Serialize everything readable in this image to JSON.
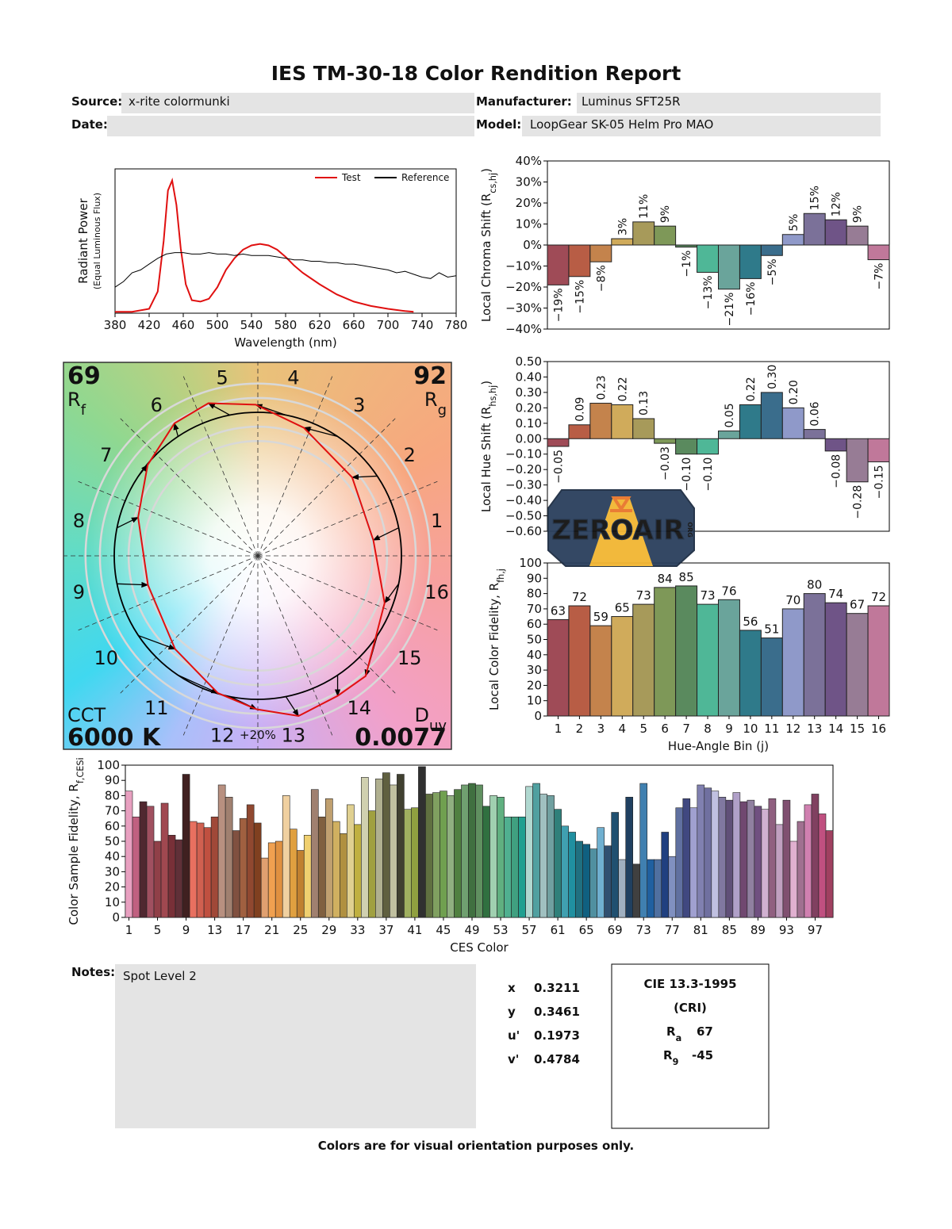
{
  "header": {
    "title": "IES TM-30-18 Color Rendition Report",
    "source_label": "Source:",
    "source": "x-rite colormunki",
    "manufacturer_label": "Manufacturer:",
    "manufacturer": "Luminus SFT25R",
    "date_label": "Date:",
    "model_label": "Model:",
    "model": "LoopGear SK-05 Helm Pro MAO"
  },
  "chart_data": [
    {
      "type": "line",
      "xlabel": "Wavelength (nm)",
      "ylabel": "Radiant Power",
      "ylabel_note": "(Equal Luminous Flux)",
      "xlim": [
        380,
        780
      ],
      "xticks": [
        380,
        420,
        460,
        500,
        540,
        580,
        620,
        660,
        700,
        740,
        780
      ],
      "ylim": [
        0,
        1
      ],
      "series": [
        {
          "name": "Test",
          "color": "#e01010",
          "x": [
            380,
            400,
            420,
            430,
            437,
            442,
            447,
            452,
            457,
            463,
            470,
            480,
            490,
            500,
            510,
            520,
            530,
            540,
            550,
            560,
            570,
            580,
            590,
            600,
            620,
            640,
            660,
            680,
            700,
            720,
            730
          ],
          "values": [
            0.01,
            0.01,
            0.03,
            0.15,
            0.5,
            0.85,
            0.92,
            0.75,
            0.45,
            0.2,
            0.09,
            0.08,
            0.1,
            0.18,
            0.3,
            0.38,
            0.44,
            0.47,
            0.48,
            0.47,
            0.44,
            0.39,
            0.33,
            0.28,
            0.2,
            0.13,
            0.08,
            0.05,
            0.03,
            0.015,
            0.01
          ]
        },
        {
          "name": "Reference",
          "color": "#000000",
          "x": [
            380,
            390,
            400,
            410,
            420,
            430,
            440,
            450,
            460,
            470,
            480,
            490,
            500,
            510,
            520,
            530,
            540,
            550,
            560,
            570,
            580,
            590,
            600,
            610,
            620,
            630,
            640,
            650,
            660,
            670,
            680,
            690,
            700,
            710,
            720,
            730,
            740,
            750,
            760,
            770,
            780
          ],
          "values": [
            0.18,
            0.22,
            0.28,
            0.3,
            0.34,
            0.38,
            0.41,
            0.42,
            0.42,
            0.41,
            0.41,
            0.42,
            0.41,
            0.41,
            0.4,
            0.41,
            0.4,
            0.4,
            0.4,
            0.39,
            0.38,
            0.37,
            0.37,
            0.36,
            0.36,
            0.35,
            0.35,
            0.34,
            0.34,
            0.33,
            0.32,
            0.31,
            0.3,
            0.28,
            0.29,
            0.27,
            0.25,
            0.24,
            0.28,
            0.25,
            0.26
          ]
        }
      ]
    },
    {
      "type": "bar",
      "ylabel": "Local Chroma Shift (R",
      "ylabel_sub": "cs,hj",
      "ylabel_end": ")",
      "ylim": [
        -40,
        40
      ],
      "yticks": [
        {
          "value": 40,
          "label": "40%"
        },
        {
          "value": 30,
          "label": "30%"
        },
        {
          "value": 20,
          "label": "20%"
        },
        {
          "value": 10,
          "label": "10%"
        },
        {
          "value": 0,
          "label": "0%"
        },
        {
          "value": -10,
          "label": "−10%"
        },
        {
          "value": -20,
          "label": "−20%"
        },
        {
          "value": -30,
          "label": "−30%"
        },
        {
          "value": -40,
          "label": "−40%"
        }
      ],
      "values": [
        -19,
        -15,
        -8,
        3,
        11,
        9,
        -1,
        -13,
        -21,
        -16,
        -5,
        5,
        15,
        12,
        9,
        -7
      ],
      "value_labels": [
        "−19%",
        "−15%",
        "−8%",
        "3%",
        "11%",
        "9%",
        "−1%",
        "−13%",
        "−21%",
        "−16%",
        "−5%",
        "5%",
        "15%",
        "12%",
        "9%",
        "−7%"
      ],
      "colors": [
        "#9f4b57",
        "#b85d45",
        "#c4834c",
        "#d0ab5b",
        "#a79a5a",
        "#7e9858",
        "#5a8a5e",
        "#4fb797",
        "#6aa49b",
        "#2f7a8a",
        "#3a6d8c",
        "#8f99c9",
        "#7b7199",
        "#6f5487",
        "#977c95",
        "#c0789a"
      ]
    },
    {
      "type": "bar",
      "ylabel": "Local Hue Shift (R",
      "ylabel_sub": "hs,hj",
      "ylabel_end": ")",
      "ylim": [
        -0.6,
        0.5
      ],
      "yticks": [
        {
          "value": 0.5,
          "label": "0.50"
        },
        {
          "value": 0.4,
          "label": "0.40"
        },
        {
          "value": 0.3,
          "label": "0.30"
        },
        {
          "value": 0.2,
          "label": "0.20"
        },
        {
          "value": 0.1,
          "label": "0.10"
        },
        {
          "value": 0,
          "label": "0.00"
        },
        {
          "value": -0.1,
          "label": "−0.10"
        },
        {
          "value": -0.2,
          "label": "−0.20"
        },
        {
          "value": -0.3,
          "label": "−0.30"
        },
        {
          "value": -0.4,
          "label": "−0.40"
        },
        {
          "value": -0.5,
          "label": "−0.50"
        },
        {
          "value": -0.6,
          "label": "−0.60"
        }
      ],
      "values": [
        -0.05,
        0.09,
        0.23,
        0.22,
        0.13,
        -0.03,
        -0.1,
        -0.1,
        0.05,
        0.22,
        0.3,
        0.2,
        0.06,
        -0.08,
        -0.28,
        -0.15
      ],
      "value_labels": [
        "−0.05",
        "0.09",
        "0.23",
        "0.22",
        "0.13",
        "−0.03",
        "−0.10",
        "−0.10",
        "0.05",
        "0.22",
        "0.30",
        "0.20",
        "0.06",
        "−0.08",
        "−0.28",
        "−0.15"
      ],
      "colors": [
        "#9f4b57",
        "#b85d45",
        "#c4834c",
        "#d0ab5b",
        "#a79a5a",
        "#7e9858",
        "#5a8a5e",
        "#4fb797",
        "#6aa49b",
        "#2f7a8a",
        "#3a6d8c",
        "#8f99c9",
        "#7b7199",
        "#6f5487",
        "#977c95",
        "#c0789a"
      ]
    },
    {
      "type": "bar",
      "ylabel": "Local Color Fidelity, R",
      "ylabel_sub": "fh,j",
      "xlabel": "Hue-Angle Bin (j)",
      "ylim": [
        0,
        100
      ],
      "yticks": [
        0,
        10,
        20,
        30,
        40,
        50,
        60,
        70,
        80,
        90,
        100
      ],
      "categories": [
        "1",
        "2",
        "3",
        "4",
        "5",
        "6",
        "7",
        "8",
        "9",
        "10",
        "11",
        "12",
        "13",
        "14",
        "15",
        "16"
      ],
      "values": [
        63,
        72,
        59,
        65,
        73,
        84,
        85,
        73,
        76,
        56,
        51,
        70,
        80,
        74,
        67,
        72
      ],
      "colors": [
        "#9f4b57",
        "#b85d45",
        "#c4834c",
        "#d0ab5b",
        "#a79a5a",
        "#7e9858",
        "#5a8a5e",
        "#4fb797",
        "#6aa49b",
        "#2f7a8a",
        "#3a6d8c",
        "#8f99c9",
        "#7b7199",
        "#6f5487",
        "#977c95",
        "#c0789a"
      ]
    },
    {
      "type": "bar",
      "ylabel": "Color Sample Fidelity, R",
      "ylabel_sub": "f,CESi",
      "xlabel": "CES Color",
      "ylim": [
        0,
        100
      ],
      "yticks": [
        0,
        10,
        20,
        30,
        40,
        50,
        60,
        70,
        80,
        90,
        100
      ],
      "categories": [
        "1",
        null,
        null,
        null,
        "5",
        null,
        null,
        null,
        "9",
        null,
        null,
        null,
        "13",
        null,
        null,
        null,
        "17",
        null,
        null,
        null,
        "21",
        null,
        null,
        null,
        "25",
        null,
        null,
        null,
        "29",
        null,
        null,
        null,
        "33",
        null,
        null,
        null,
        "37",
        null,
        null,
        null,
        "41",
        null,
        null,
        null,
        "45",
        null,
        null,
        null,
        "49",
        null,
        null,
        null,
        "53",
        null,
        null,
        null,
        "57",
        null,
        null,
        null,
        "61",
        null,
        null,
        null,
        "65",
        null,
        null,
        null,
        "69",
        null,
        null,
        null,
        "73",
        null,
        null,
        null,
        "77",
        null,
        null,
        null,
        "81",
        null,
        null,
        null,
        "85",
        null,
        null,
        null,
        "89",
        null,
        null,
        null,
        "93",
        null,
        null,
        null,
        "97",
        null,
        null
      ],
      "values": [
        83,
        66,
        76,
        73,
        50,
        75,
        54,
        51,
        94,
        63,
        62,
        59,
        66,
        87,
        79,
        57,
        65,
        74,
        62,
        39,
        49,
        50,
        80,
        58,
        44,
        54,
        84,
        66,
        78,
        63,
        55,
        74,
        61,
        92,
        70,
        91,
        95,
        87,
        94,
        71,
        72,
        99,
        81,
        82,
        83,
        80,
        84,
        87,
        88,
        87,
        73,
        80,
        79,
        66,
        66,
        66,
        86,
        88,
        81,
        80,
        71,
        60,
        56,
        50,
        48,
        45,
        59,
        47,
        69,
        38,
        79,
        35,
        88,
        38,
        38,
        56,
        40,
        72,
        78,
        72,
        87,
        85,
        83,
        79,
        77,
        82,
        76,
        77,
        73,
        71,
        78,
        61,
        77,
        50,
        63,
        74,
        81,
        68,
        57
      ],
      "colors": [
        "#e8a0c0",
        "#c06080",
        "#502830",
        "#a05060",
        "#904048",
        "#a04850",
        "#783038",
        "#603038",
        "#402020",
        "#e87060",
        "#d06050",
        "#c05040",
        "#a04838",
        "#b89080",
        "#a08070",
        "#805040",
        "#a06040",
        "#904830",
        "#804020",
        "#e0a070",
        "#f0a050",
        "#e09040",
        "#f0d0a0",
        "#e0a040",
        "#c08030",
        "#f0d070",
        "#a08070",
        "#806040",
        "#c0a070",
        "#d0b060",
        "#b09040",
        "#e0d090",
        "#c0b040",
        "#d0d0b0",
        "#a0a040",
        "#b0b090",
        "#606040",
        "#c0c0a0",
        "#404030",
        "#a0b060",
        "#90a040",
        "#303030",
        "#607040",
        "#80a060",
        "#70a050",
        "#90b080",
        "#508040",
        "#70a070",
        "#407040",
        "#609060",
        "#307040",
        "#a0d0b0",
        "#60b080",
        "#50b090",
        "#40a080",
        "#20a090",
        "#b0d8d0",
        "#50a0a0",
        "#a0c0c0",
        "#70a0a0",
        "#30807a",
        "#40a0b0",
        "#2090a0",
        "#207080",
        "#106080",
        "#5090a0",
        "#70b0d0",
        "#305070",
        "#205070",
        "#a0b0c0",
        "#204060",
        "#404040",
        "#4080b0",
        "#2060a0",
        "#5070a0",
        "#204080",
        "#8090c0",
        "#6070a0",
        "#404880",
        "#a0a0d0",
        "#8080b0",
        "#7070a0",
        "#c0c0e0",
        "#8078a0",
        "#605078",
        "#b0a0c8",
        "#704870",
        "#9080a0",
        "#705080",
        "#d0b0d0",
        "#906080",
        "#c0a0c0",
        "#805070",
        "#e0b0d0",
        "#a07090",
        "#d080b0",
        "#804060",
        "#c05080",
        "#a04060"
      ]
    },
    {
      "type": "vector",
      "rf": 69,
      "rf_label": "R",
      "rf_sub": "f",
      "rg": 92,
      "rg_label": "R",
      "rg_sub": "g",
      "cct_label": "CCT",
      "cct": "6000 K",
      "duv_label": "D",
      "duv_sub": "uv",
      "duv": 0.0077,
      "bin_labels": [
        "1",
        "2",
        "3",
        "4",
        "5",
        "6",
        "7",
        "8",
        "9",
        "10",
        "11",
        "12",
        "13",
        "14",
        "15",
        "16"
      ],
      "scale_label": "+20%",
      "test_color": "#e01010",
      "reference_color": "#000000"
    }
  ],
  "logo": {
    "text": "ZEROAIR",
    "suffix": "ORG"
  },
  "notes": {
    "label": "Notes:",
    "text": "Spot Level 2"
  },
  "chromaticity": [
    {
      "label": "x",
      "value": 0.3211
    },
    {
      "label": "y",
      "value": 0.3461
    },
    {
      "label": "u'",
      "value": 0.1973
    },
    {
      "label": "v'",
      "value": 0.4784
    }
  ],
  "cri": {
    "title": "CIE 13.3-1995",
    "subtitle": "(CRI)",
    "ra_label": "R",
    "ra_sub": "a",
    "ra": 67,
    "r9_label": "R",
    "r9_sub": "9",
    "r9": -45
  },
  "footer": "Colors are for visual orientation purposes only."
}
